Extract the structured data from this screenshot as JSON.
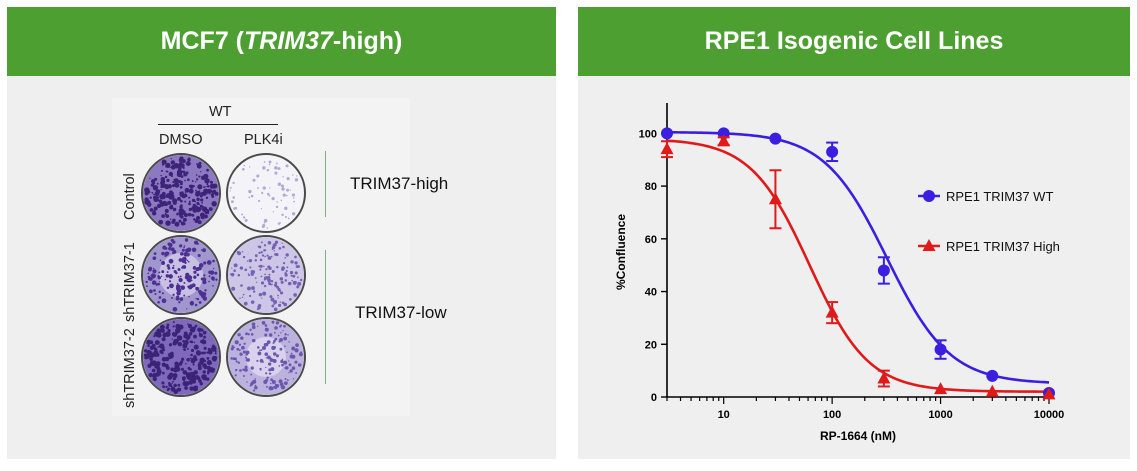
{
  "left_panel": {
    "title_prefix": "MCF7 (",
    "title_italic": "TRIM37",
    "title_suffix": "-high)",
    "header": "WT",
    "columns": [
      "DMSO",
      "PLK4i"
    ],
    "rows": [
      "Control",
      "shTRIM37-1",
      "shTRIM37-2"
    ],
    "groups": [
      "TRIM37-high",
      "TRIM37-low"
    ],
    "colors": {
      "stain": "#5b3f9e",
      "background": "#efefef",
      "banner": "#4d9f32"
    }
  },
  "right_panel": {
    "title": "RPE1 Isogenic Cell Lines"
  },
  "chart_data": {
    "type": "scatter",
    "xscale": "log",
    "xlabel": "RP-1664 (nM)",
    "ylabel": "%Confluence",
    "xlim": [
      3,
      10000
    ],
    "ylim": [
      0,
      110
    ],
    "xticks": [
      "10",
      "100",
      "1000",
      "10000"
    ],
    "yticks": [
      "0",
      "20",
      "40",
      "60",
      "80",
      "100"
    ],
    "legend_position": "right",
    "series": [
      {
        "name": "RPE1 TRIM37 WT",
        "color": "#3a1fe0",
        "marker": "circle",
        "x": [
          3,
          10,
          30,
          100,
          300,
          1000,
          3000,
          10000
        ],
        "y": [
          100,
          100,
          98,
          93,
          48,
          18,
          8,
          1.5
        ],
        "err": [
          0.5,
          0.5,
          1,
          3.5,
          5,
          3.5,
          1,
          0.5
        ],
        "fit": {
          "top": 100.5,
          "bottom": 5,
          "ec50": 320,
          "hill": 1.5
        }
      },
      {
        "name": "RPE1 TRIM37 High",
        "color": "#e01a1a",
        "marker": "triangle",
        "x": [
          3,
          10,
          30,
          100,
          300,
          1000,
          3000,
          10000
        ],
        "y": [
          94,
          97,
          75,
          32,
          7,
          3,
          2,
          1
        ],
        "err": [
          3,
          1.5,
          11,
          4,
          3,
          0.5,
          0.5,
          0.5
        ],
        "fit": {
          "top": 98,
          "bottom": 2,
          "ec50": 62,
          "hill": 1.6
        }
      }
    ]
  }
}
